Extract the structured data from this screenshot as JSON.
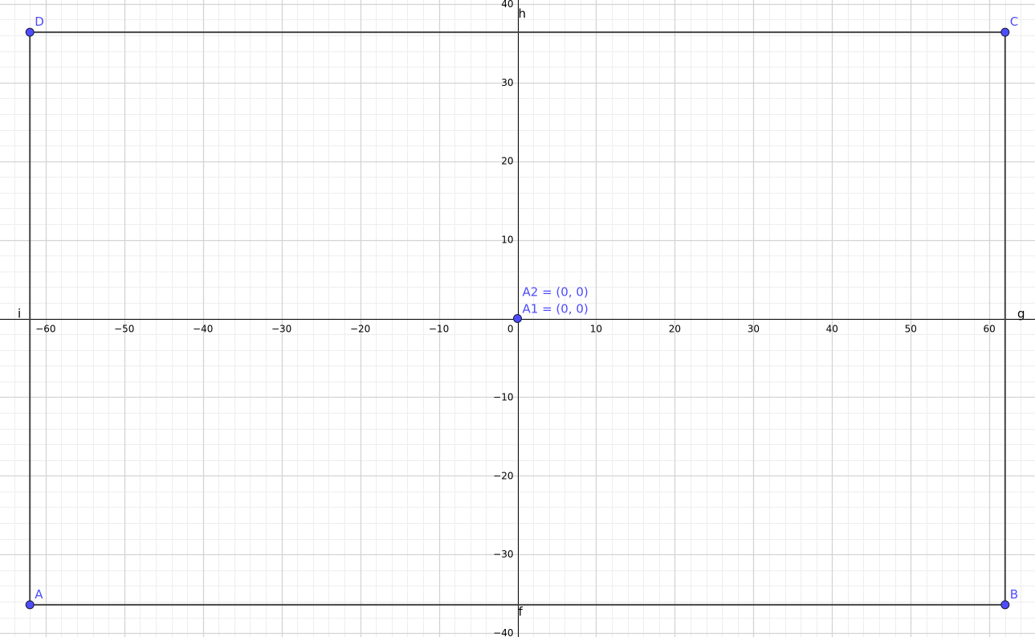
{
  "graphics_view": {
    "x_range": [
      -65.8,
      65.8
    ],
    "y_range": [
      -40.5,
      40.5
    ],
    "major_grid_step": 10,
    "minor_grid_step": 2,
    "grid": true,
    "x_ticks": [
      -60,
      -50,
      -40,
      -30,
      -20,
      -10,
      10,
      20,
      30,
      40,
      50,
      60
    ],
    "y_ticks": [
      -40,
      -30,
      -20,
      -10,
      10,
      20,
      30,
      40
    ],
    "origin_label": "0",
    "colors": {
      "point": "#4d4dff",
      "point_outline": "#1a1a3a",
      "label": "#4d4dff",
      "segment": "#444444",
      "axis": "#000000",
      "major_grid": "#d4d4d4",
      "minor_grid": "#eeeeee"
    }
  },
  "points": [
    {
      "name": "A",
      "x": -62,
      "y": -36.4,
      "label": "A"
    },
    {
      "name": "B",
      "x": 62,
      "y": -36.4,
      "label": "B"
    },
    {
      "name": "C",
      "x": 62,
      "y": 36.4,
      "label": "C"
    },
    {
      "name": "D",
      "x": -62,
      "y": 36.4,
      "label": "D"
    },
    {
      "name": "A1",
      "x": 0,
      "y": 0,
      "label": ""
    }
  ],
  "origin_labels": {
    "a2": "A2 = (0, 0)",
    "a1": "A1 = (0, 0)"
  },
  "segments": [
    {
      "name": "f",
      "from": "A",
      "to": "B",
      "label": "f"
    },
    {
      "name": "g",
      "from": "B",
      "to": "C",
      "label": "g"
    },
    {
      "name": "h",
      "from": "C",
      "to": "D",
      "label": "h"
    },
    {
      "name": "i",
      "from": "D",
      "to": "A",
      "label": "i"
    }
  ]
}
